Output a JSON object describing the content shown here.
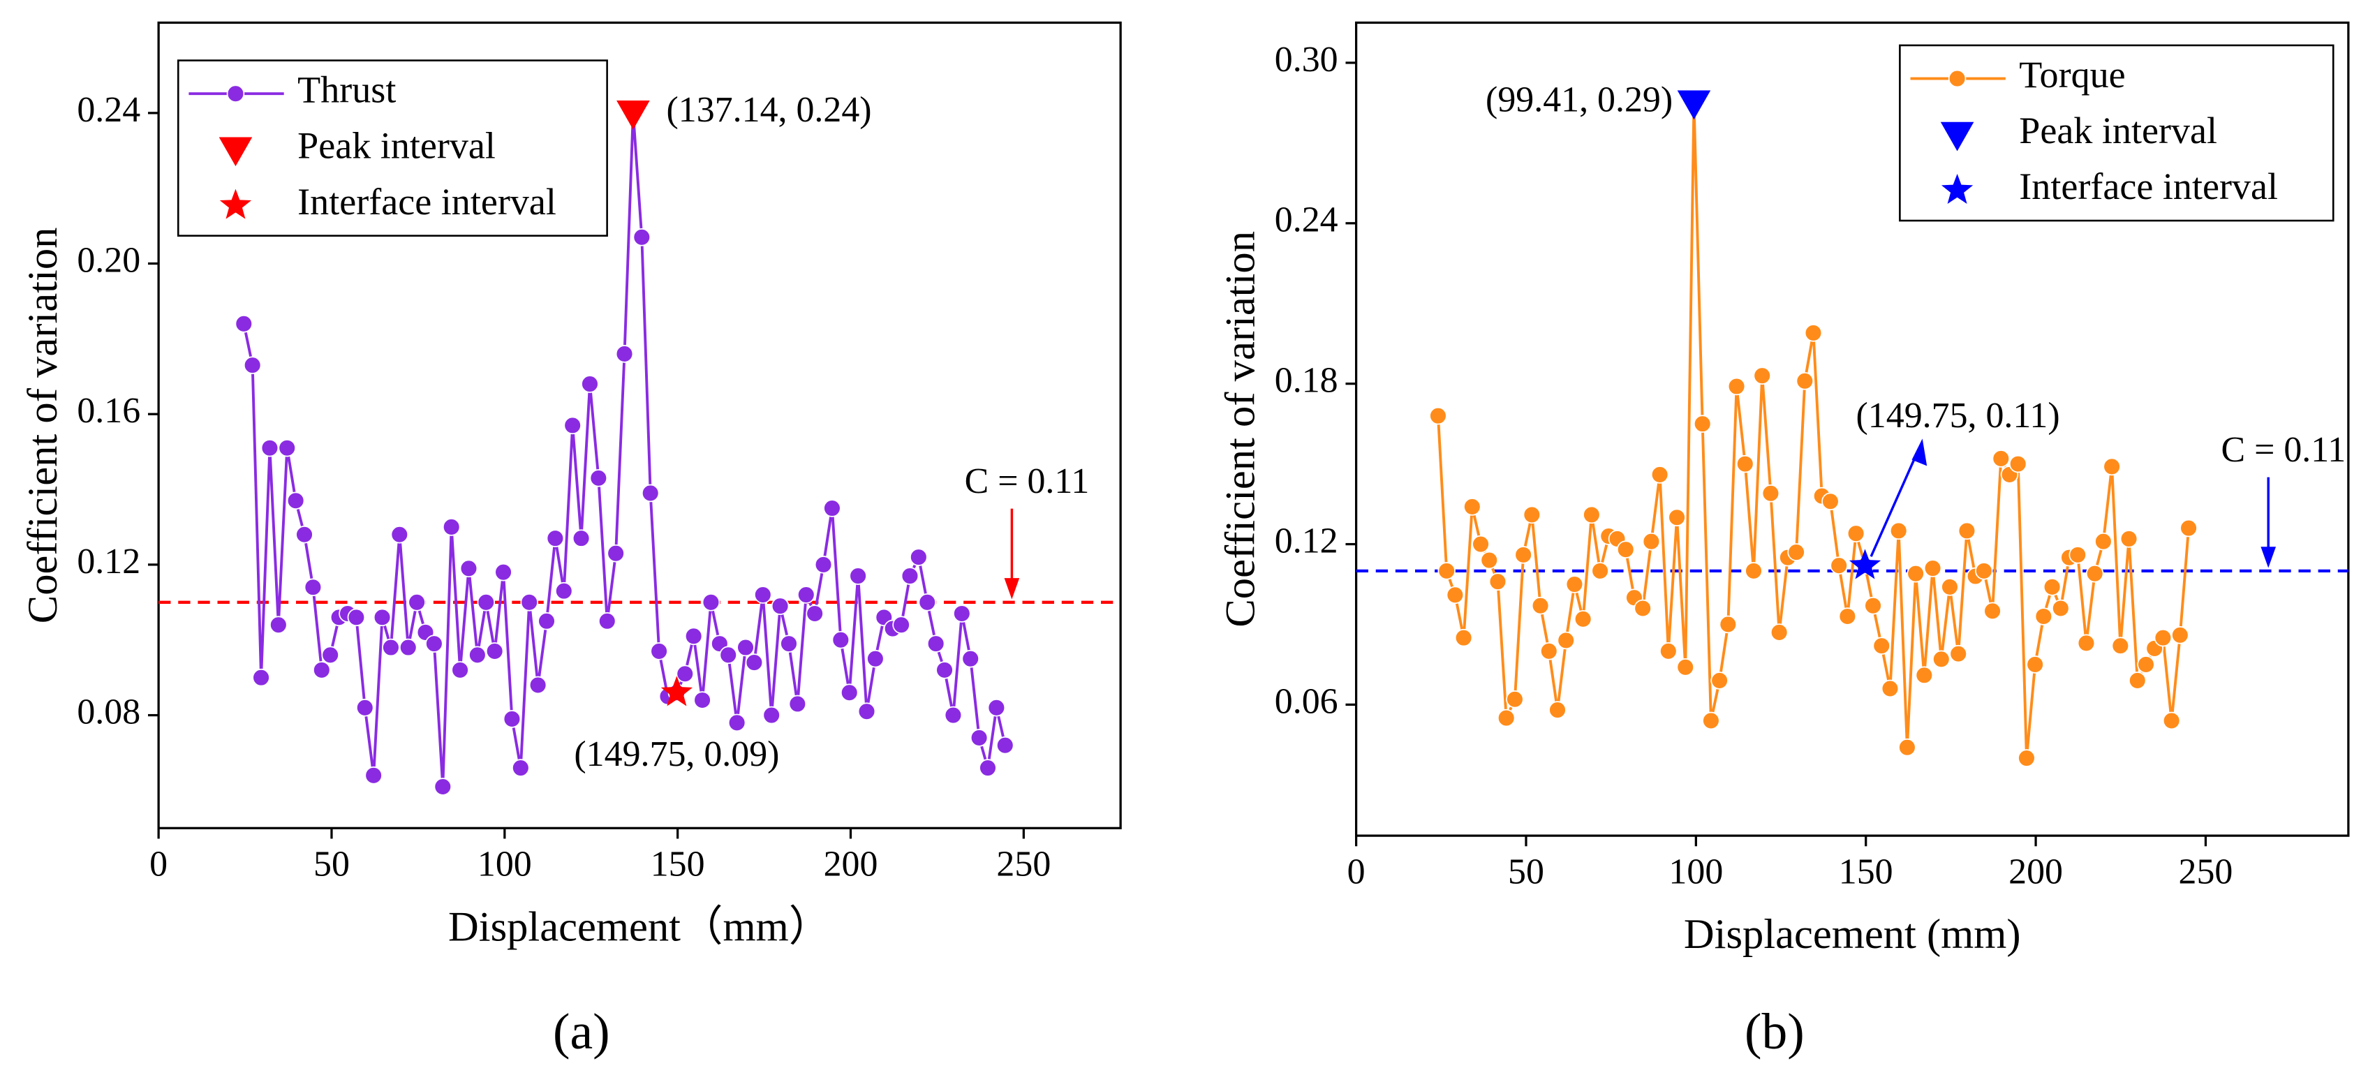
{
  "chart_data": [
    {
      "type": "line",
      "panel_label": "(a)",
      "xlabel": "Displacement（mm）",
      "ylabel": "Coefficient of variation",
      "xlim": [
        0,
        278
      ],
      "ylim": [
        0.05,
        0.264
      ],
      "xticks": [
        0,
        50,
        100,
        150,
        200,
        250
      ],
      "yticks": [
        0.08,
        0.12,
        0.16,
        {
          "value": 0.2,
          "label": "0.20"
        },
        0.24
      ],
      "legend": "upper left",
      "series": [
        {
          "name": "Thrust",
          "color": "#8a2be2",
          "marker": "circle",
          "x": [
            24.64,
            27.14,
            29.64,
            32.14,
            34.64,
            37.14,
            39.64,
            42.14,
            44.64,
            47.14,
            49.64,
            52.14,
            54.64,
            57.14,
            59.64,
            62.14,
            64.64,
            67.14,
            69.64,
            72.14,
            74.64,
            77.14,
            79.64,
            82.14,
            84.64,
            87.14,
            89.64,
            92.14,
            94.64,
            97.14,
            99.64,
            102.14,
            104.64,
            107.14,
            109.64,
            112.14,
            114.64,
            117.14,
            119.64,
            122.14,
            124.64,
            127.14,
            129.64,
            132.14,
            134.64,
            137.14,
            139.64,
            142.14,
            144.64,
            147.14,
            149.75,
            152.14,
            154.64,
            157.14,
            159.64,
            162.14,
            164.64,
            167.14,
            169.64,
            172.14,
            174.64,
            177.14,
            179.64,
            182.14,
            184.64,
            187.14,
            189.64,
            192.14,
            194.64,
            197.14,
            199.64,
            202.14,
            204.64,
            207.14,
            209.64,
            212.14,
            214.64,
            217.14,
            219.64,
            222.14,
            224.64,
            227.14,
            229.64,
            232.14,
            234.64,
            237.14,
            239.64,
            242.14,
            244.64
          ],
          "values": [
            0.184,
            0.173,
            0.09,
            0.151,
            0.104,
            0.151,
            0.137,
            0.128,
            0.114,
            0.092,
            0.096,
            0.106,
            0.107,
            0.106,
            0.082,
            0.064,
            0.106,
            0.098,
            0.128,
            0.098,
            0.11,
            0.102,
            0.099,
            0.061,
            0.13,
            0.092,
            0.119,
            0.096,
            0.11,
            0.097,
            0.118,
            0.079,
            0.066,
            0.11,
            0.088,
            0.105,
            0.127,
            0.113,
            0.157,
            0.127,
            0.168,
            0.143,
            0.105,
            0.123,
            0.176,
            0.24,
            0.207,
            0.139,
            0.097,
            0.085,
            0.086,
            0.091,
            0.101,
            0.084,
            0.11,
            0.099,
            0.096,
            0.078,
            0.098,
            0.094,
            0.112,
            0.08,
            0.109,
            0.099,
            0.083,
            0.112,
            0.107,
            0.12,
            0.135,
            0.1,
            0.086,
            0.117,
            0.081,
            0.095,
            0.106,
            0.103,
            0.104,
            0.117,
            0.122,
            0.11,
            0.099,
            0.092,
            0.08,
            0.107,
            0.095,
            0.074,
            0.066,
            0.082,
            0.072
          ]
        },
        {
          "name": "Peak interval",
          "color": "#ff0000",
          "marker": "triangle",
          "x": [
            137.14
          ],
          "values": [
            0.24
          ],
          "annotation": "(137.14, 0.24)"
        },
        {
          "name": "Interface interval",
          "color": "#ff0000",
          "marker": "star",
          "x": [
            149.75
          ],
          "values": [
            0.086
          ],
          "annotation": "(149.75, 0.09)"
        }
      ],
      "hline": {
        "value": 0.11,
        "color": "#ff0000",
        "label": "C = 0.11"
      }
    },
    {
      "type": "line",
      "panel_label": "(b)",
      "xlabel": "Displacement (mm)",
      "ylabel": "Coefficient of variation",
      "xlim": [
        0,
        292
      ],
      "ylim": [
        0.011,
        0.315
      ],
      "xticks": [
        0,
        50,
        100,
        150,
        200,
        250
      ],
      "yticks": [
        0.06,
        0.12,
        0.18,
        0.24,
        {
          "value": 0.3,
          "label": "0.30"
        }
      ],
      "legend": "upper right",
      "series": [
        {
          "name": "Torque",
          "color": "#ff8c1a",
          "marker": "circle",
          "x": [
            24.11,
            26.62,
            29.13,
            31.64,
            34.15,
            36.66,
            39.17,
            41.68,
            44.19,
            46.7,
            49.21,
            51.72,
            54.23,
            56.74,
            59.25,
            61.76,
            64.27,
            66.78,
            69.29,
            71.8,
            74.31,
            76.82,
            79.33,
            81.84,
            84.35,
            86.86,
            89.37,
            91.88,
            94.39,
            96.9,
            99.41,
            101.92,
            104.43,
            106.94,
            109.45,
            111.96,
            114.47,
            116.98,
            119.49,
            122.0,
            124.51,
            127.02,
            129.53,
            132.04,
            134.55,
            137.06,
            139.57,
            142.08,
            144.59,
            147.1,
            149.75,
            152.12,
            154.63,
            157.14,
            159.65,
            162.16,
            164.67,
            167.18,
            169.69,
            172.2,
            174.71,
            177.22,
            179.73,
            182.24,
            184.75,
            187.26,
            189.77,
            192.28,
            194.79,
            197.3,
            199.81,
            202.32,
            204.83,
            207.34,
            209.85,
            212.36,
            214.87,
            217.38,
            219.89,
            222.4,
            224.91,
            227.42,
            229.93,
            232.44,
            234.95,
            237.46,
            239.97,
            242.48,
            244.99
          ],
          "values": [
            0.168,
            0.11,
            0.101,
            0.085,
            0.134,
            0.12,
            0.114,
            0.106,
            0.055,
            0.062,
            0.116,
            0.131,
            0.097,
            0.08,
            0.058,
            0.084,
            0.105,
            0.092,
            0.131,
            0.11,
            0.123,
            0.122,
            0.118,
            0.1,
            0.096,
            0.121,
            0.146,
            0.08,
            0.13,
            0.074,
            0.285,
            0.165,
            0.054,
            0.069,
            0.09,
            0.179,
            0.15,
            0.11,
            0.183,
            0.139,
            0.087,
            0.115,
            0.117,
            0.181,
            0.199,
            0.138,
            0.136,
            0.112,
            0.093,
            0.124,
            0.112,
            0.097,
            0.082,
            0.066,
            0.125,
            0.044,
            0.109,
            0.071,
            0.111,
            0.077,
            0.104,
            0.079,
            0.125,
            0.108,
            0.11,
            0.095,
            0.152,
            0.146,
            0.15,
            0.04,
            0.075,
            0.093,
            0.104,
            0.096,
            0.115,
            0.116,
            0.083,
            0.109,
            0.121,
            0.149,
            0.082,
            0.122,
            0.069,
            0.075,
            0.081,
            0.085,
            0.054,
            0.086,
            0.126
          ]
        },
        {
          "name": "Peak interval",
          "color": "#0000ff",
          "marker": "triangle",
          "x": [
            99.41
          ],
          "values": [
            0.285
          ],
          "annotation": "(99.41, 0.29)"
        },
        {
          "name": "Interface interval",
          "color": "#0000ff",
          "marker": "star",
          "x": [
            149.75
          ],
          "values": [
            0.112
          ],
          "annotation": "(149.75, 0.11)"
        }
      ],
      "hline": {
        "value": 0.11,
        "color": "#0000ff",
        "label": "C = 0.11"
      }
    }
  ]
}
